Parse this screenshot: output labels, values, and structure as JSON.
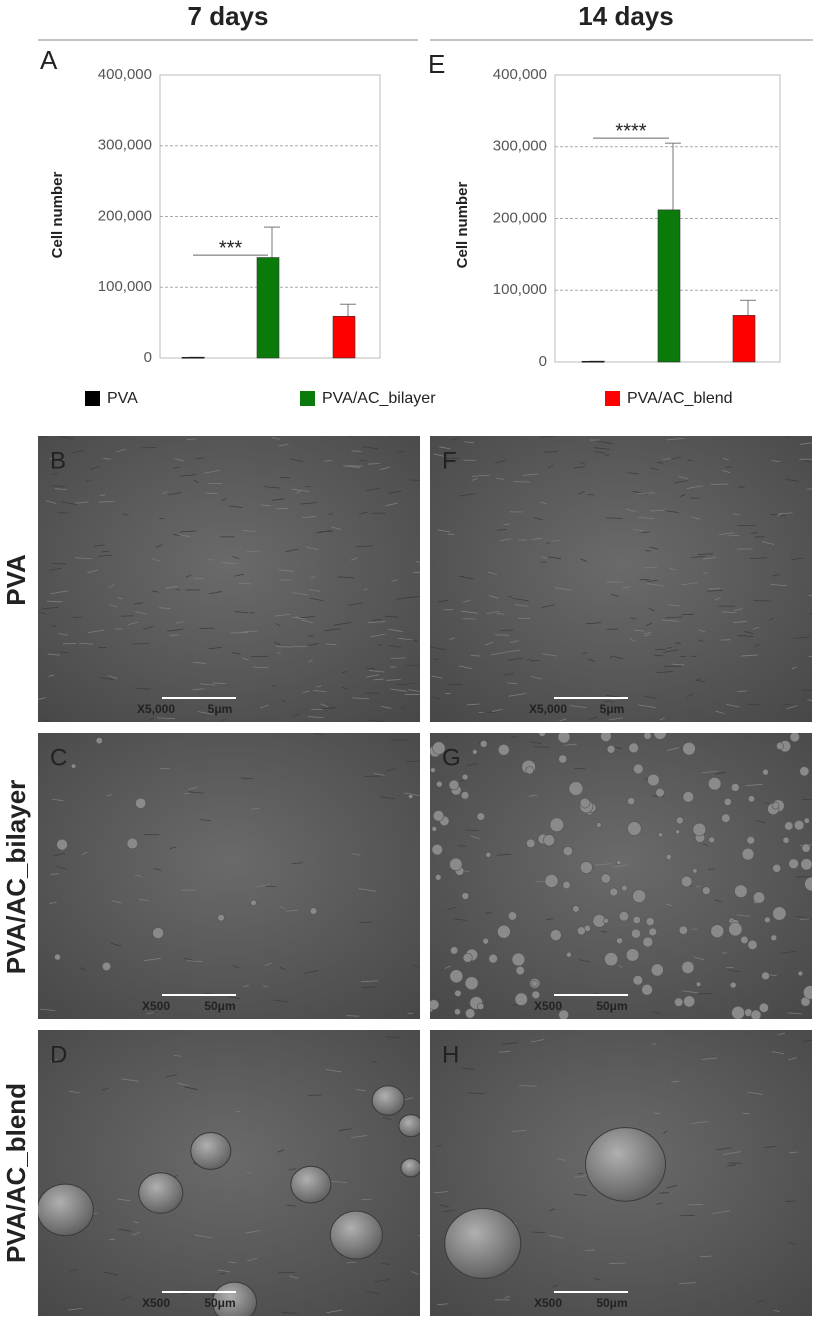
{
  "headers": [
    "7 days",
    "14 days"
  ],
  "row_labels": [
    "PVA",
    "PVA/AC_bilayer",
    "PVA/AC_blend"
  ],
  "chart_data": [
    {
      "type": "bar",
      "panel": "A",
      "ylabel": "Cell number",
      "annotation": "***",
      "ylim": [
        0,
        400000
      ],
      "yticks": [
        0,
        {
          "value": 100000,
          "label": "100,000"
        },
        {
          "value": 200000,
          "label": "200,000"
        },
        {
          "value": 300000,
          "label": "300,000"
        },
        {
          "value": 400000,
          "label": "400,000"
        }
      ],
      "grid": true,
      "series": [
        {
          "name": "PVA",
          "color": "#000000",
          "values": [
            1000
          ],
          "errors": [
            0
          ]
        },
        {
          "name": "PVA/AC_bilayer",
          "color": "#0a7a0a",
          "values": [
            142000
          ],
          "errors": [
            43000
          ]
        },
        {
          "name": "PVA/AC_blend",
          "color": "#ff0000",
          "values": [
            59000
          ],
          "errors": [
            17000
          ]
        }
      ]
    },
    {
      "type": "bar",
      "panel": "E",
      "ylabel": "Cell number",
      "annotation": "****",
      "ylim": [
        0,
        400000
      ],
      "yticks": [
        0,
        {
          "value": 100000,
          "label": "100,000"
        },
        {
          "value": 200000,
          "label": "200,000"
        },
        {
          "value": 300000,
          "label": "300,000"
        },
        {
          "value": 400000,
          "label": "400,000"
        }
      ],
      "grid": true,
      "series": [
        {
          "color": "#000000",
          "values": [
            1000
          ],
          "errors": [
            0
          ]
        },
        {
          "color": "#0a7a0a",
          "values": [
            212000
          ],
          "errors": [
            93000
          ]
        },
        {
          "color": "#ff0000",
          "values": [
            65000
          ],
          "errors": [
            21000
          ]
        }
      ]
    }
  ],
  "images": [
    {
      "panel": "B",
      "magnification": "X5,000",
      "scale": "5μm"
    },
    {
      "panel": "C",
      "magnification": "X500",
      "scale": "50μm"
    },
    {
      "panel": "D",
      "magnification": "X500",
      "scale": "50μm"
    },
    {
      "panel": "F",
      "magnification": "X5,000",
      "scale": "5μm"
    },
    {
      "panel": "G",
      "magnification": "X500",
      "scale": "50μm"
    },
    {
      "panel": "H",
      "magnification": "X500",
      "scale": "50μm"
    }
  ]
}
